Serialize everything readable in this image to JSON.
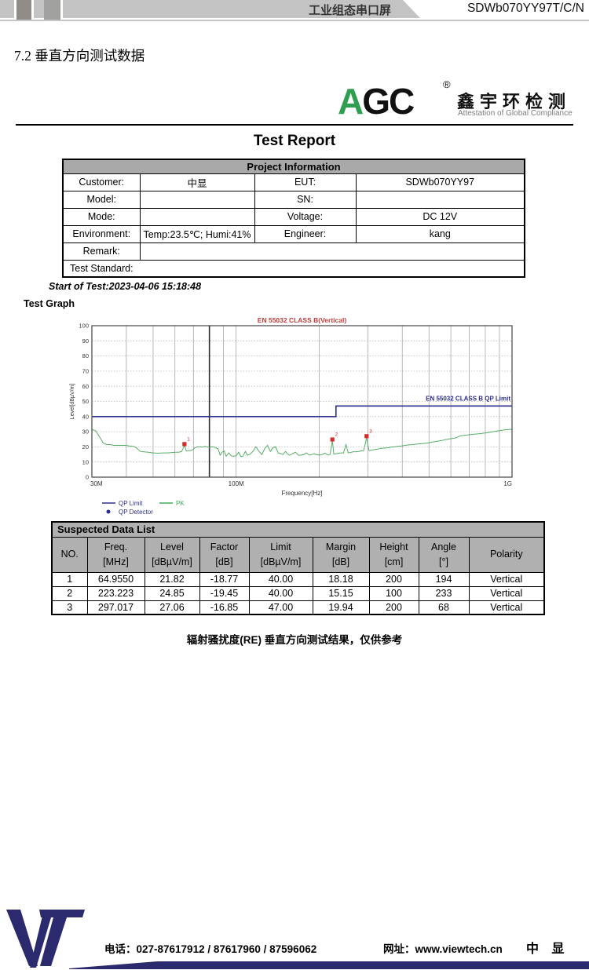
{
  "header": {
    "product": "工业组态串口屏",
    "model": "SDWb070YY97T/C/N"
  },
  "section_title": "7.2 垂直方向测试数据",
  "logo": {
    "a": "A",
    "gc": "GC",
    "reg": "®",
    "cn": "鑫宇环检测",
    "en": "Attestation of Global Compliance"
  },
  "report": {
    "title": "Test Report",
    "start_of_test": "Start of Test:2023-04-06 15:18:48",
    "test_graph_label": "Test Graph"
  },
  "project": {
    "header": "Project Information",
    "rows": [
      [
        "Customer:",
        "中显",
        "EUT:",
        "SDWb070YY97"
      ],
      [
        "Model:",
        "",
        "SN:",
        ""
      ],
      [
        "Mode:",
        "",
        "Voltage:",
        "DC 12V"
      ],
      [
        "Environment:",
        "Temp:23.5℃; Humi:41%",
        "Engineer:",
        "kang"
      ]
    ],
    "remark_label": "Remark:",
    "remark_value": "",
    "test_standard_label": "Test Standard:"
  },
  "chart_data": {
    "type": "line",
    "title": "EN 55032 CLASS B(Vertical)",
    "title_color": "#c23b3b",
    "xlabel": "Frequency[Hz]",
    "ylabel": "Level[dBµV/m]",
    "x_scale": "log",
    "x_range_mhz": [
      30,
      1000
    ],
    "x_ticks": [
      {
        "mhz": 30,
        "label": "30M"
      },
      {
        "mhz": 100,
        "label": "100M"
      },
      {
        "mhz": 1000,
        "label": "1G"
      }
    ],
    "x_grid_mhz": [
      40,
      50,
      60,
      70,
      80,
      90,
      100,
      200,
      300,
      400,
      500,
      600,
      700,
      800,
      900
    ],
    "ylim": [
      0,
      100
    ],
    "y_tick_step": 10,
    "grid": true,
    "cursor_freq_mhz": 80,
    "limit_label": "EN 55032 CLASS B QP Limit",
    "legend": [
      {
        "label": "QP Limit",
        "color": "#2d2f8f",
        "type": "line"
      },
      {
        "label": "QP Detector",
        "color": "#2d2f8f",
        "type": "dot"
      },
      {
        "label": "PK",
        "color": "#3fae5a",
        "type": "line"
      }
    ],
    "series": [
      {
        "name": "QP Limit",
        "color": "#2d2f8f",
        "points_mhz_db": [
          [
            30,
            40
          ],
          [
            230,
            40
          ],
          [
            230,
            47
          ],
          [
            1000,
            47
          ]
        ]
      },
      {
        "name": "PK",
        "color": "#55ad66",
        "points_mhz_db": [
          [
            30,
            31.5
          ],
          [
            31,
            30.5
          ],
          [
            32,
            26.5
          ],
          [
            33,
            22.5
          ],
          [
            34,
            21.5
          ],
          [
            35,
            21.5
          ],
          [
            36,
            21
          ],
          [
            37,
            21
          ],
          [
            38,
            21
          ],
          [
            39,
            21
          ],
          [
            40,
            21
          ],
          [
            41,
            20.5
          ],
          [
            42,
            20.5
          ],
          [
            43,
            20
          ],
          [
            44,
            18.5
          ],
          [
            45,
            17
          ],
          [
            46,
            16.8
          ],
          [
            48,
            16.5
          ],
          [
            50,
            16
          ],
          [
            52,
            15.8
          ],
          [
            54,
            16
          ],
          [
            56,
            16
          ],
          [
            58,
            16.2
          ],
          [
            60,
            16.5
          ],
          [
            62,
            16.5
          ],
          [
            63.5,
            17
          ],
          [
            64.955,
            21
          ],
          [
            66,
            17.2
          ],
          [
            67,
            17.5
          ],
          [
            68,
            17.5
          ],
          [
            69.5,
            18
          ],
          [
            71,
            19.5
          ],
          [
            72.5,
            20
          ],
          [
            74,
            20
          ],
          [
            75.5,
            19.8
          ],
          [
            77,
            20.3
          ],
          [
            78.5,
            20
          ],
          [
            80,
            19.6
          ],
          [
            81.5,
            20
          ],
          [
            83,
            20
          ],
          [
            84.5,
            19.2
          ],
          [
            86,
            18.8
          ],
          [
            87.5,
            14.5
          ],
          [
            89,
            16.5
          ],
          [
            90.5,
            17.3
          ],
          [
            92,
            13.8
          ],
          [
            94,
            16
          ],
          [
            96,
            14
          ],
          [
            98,
            13.8
          ],
          [
            100,
            14.2
          ],
          [
            102,
            16.5
          ],
          [
            104,
            13.5
          ],
          [
            106,
            14
          ],
          [
            108,
            17
          ],
          [
            110,
            14.5
          ],
          [
            112,
            15
          ],
          [
            115,
            17
          ],
          [
            118,
            20
          ],
          [
            121,
            17
          ],
          [
            124,
            15
          ],
          [
            127,
            19
          ],
          [
            130,
            21
          ],
          [
            133,
            17
          ],
          [
            136,
            19.5
          ],
          [
            139,
            20
          ],
          [
            142,
            16
          ],
          [
            145,
            15.5
          ],
          [
            148,
            15
          ],
          [
            151,
            17
          ],
          [
            154,
            15
          ],
          [
            157,
            14.5
          ],
          [
            160,
            15.5
          ],
          [
            164,
            16.5
          ],
          [
            168,
            14.5
          ],
          [
            172,
            14.5
          ],
          [
            176,
            15
          ],
          [
            180,
            16
          ],
          [
            184,
            14.5
          ],
          [
            188,
            15
          ],
          [
            192,
            15.5
          ],
          [
            196,
            14.8
          ],
          [
            200,
            14.5
          ],
          [
            205,
            15
          ],
          [
            210,
            15.8
          ],
          [
            215,
            14.6
          ],
          [
            219,
            15
          ],
          [
            223.223,
            24
          ],
          [
            226,
            15.2
          ],
          [
            230,
            15.5
          ],
          [
            235,
            15.8
          ],
          [
            240,
            16
          ],
          [
            245,
            16
          ],
          [
            250,
            21.5
          ],
          [
            255,
            16
          ],
          [
            260,
            16.3
          ],
          [
            266,
            16.8
          ],
          [
            272,
            16.8
          ],
          [
            278,
            17
          ],
          [
            284,
            17.3
          ],
          [
            290,
            17.5
          ],
          [
            297.017,
            26
          ],
          [
            303,
            17.6
          ],
          [
            310,
            17.8
          ],
          [
            318,
            18.2
          ],
          [
            326,
            18.5
          ],
          [
            335,
            19
          ],
          [
            344,
            19.2
          ],
          [
            354,
            19.4
          ],
          [
            364,
            19.8
          ],
          [
            375,
            20
          ],
          [
            386,
            20.4
          ],
          [
            398,
            20.6
          ],
          [
            410,
            21
          ],
          [
            423,
            21.3
          ],
          [
            436,
            21.5
          ],
          [
            450,
            21.8
          ],
          [
            464,
            22
          ],
          [
            478,
            22.3
          ],
          [
            493,
            22.5
          ],
          [
            508,
            23
          ],
          [
            524,
            23.4
          ],
          [
            540,
            23.8
          ],
          [
            557,
            24.2
          ],
          [
            574,
            24.8
          ],
          [
            592,
            25.2
          ],
          [
            610,
            25.6
          ],
          [
            629,
            26
          ],
          [
            649,
            27.3
          ],
          [
            669,
            27.6
          ],
          [
            690,
            27.8
          ],
          [
            711,
            28.2
          ],
          [
            733,
            28.4
          ],
          [
            756,
            28.6
          ],
          [
            779,
            28.9
          ],
          [
            803,
            29.2
          ],
          [
            828,
            29.6
          ],
          [
            854,
            30
          ],
          [
            880,
            30.4
          ],
          [
            907,
            30.8
          ],
          [
            935,
            31.2
          ],
          [
            964,
            31.4
          ],
          [
            1000,
            31.6
          ]
        ]
      }
    ],
    "markers": [
      {
        "no": "1",
        "freq_mhz": 64.955,
        "level": 21.82
      },
      {
        "no": "2",
        "freq_mhz": 223.223,
        "level": 24.85
      },
      {
        "no": "3",
        "freq_mhz": 297.017,
        "level": 27.06
      }
    ],
    "marker_color": "#d42a2a"
  },
  "suspected": {
    "title": "Suspected Data List",
    "columns": [
      {
        "name": "NO.",
        "unit": ""
      },
      {
        "name": "Freq.",
        "unit": "[MHz]"
      },
      {
        "name": "Level",
        "unit": "[dBµV/m]"
      },
      {
        "name": "Factor",
        "unit": "[dB]"
      },
      {
        "name": "Limit",
        "unit": "[dBµV/m]"
      },
      {
        "name": "Margin",
        "unit": "[dB]"
      },
      {
        "name": "Height",
        "unit": "[cm]"
      },
      {
        "name": "Angle",
        "unit": "[°]"
      },
      {
        "name": "Polarity",
        "unit": ""
      }
    ],
    "rows": [
      [
        "1",
        "64.9550",
        "21.82",
        "-18.77",
        "40.00",
        "18.18",
        "200",
        "194",
        "Vertical"
      ],
      [
        "2",
        "223.223",
        "24.85",
        "-19.45",
        "40.00",
        "15.15",
        "100",
        "233",
        "Vertical"
      ],
      [
        "3",
        "297.017",
        "27.06",
        "-16.85",
        "47.00",
        "19.94",
        "200",
        "68",
        "Vertical"
      ]
    ]
  },
  "caption": "辐射骚扰度(RE) 垂直方向测试结果，仅供参考",
  "footer": {
    "phone": "电话：027-87617912 / 87617960 / 87596062",
    "web": "网址：www.viewtech.cn",
    "brand": "中 显"
  }
}
